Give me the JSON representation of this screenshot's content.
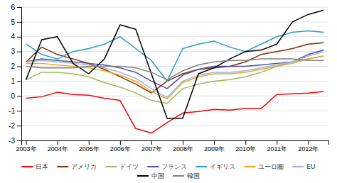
{
  "chart_data": {
    "type": "line",
    "categories": [
      "2003年",
      null,
      "2004年",
      null,
      "2005年",
      null,
      "2006年",
      null,
      "2007年",
      null,
      "2008年",
      null,
      "2009年",
      null,
      "2010年",
      null,
      "2011年",
      null,
      "2012年",
      null
    ],
    "series": [
      {
        "name": "日本",
        "color": "#ff0000",
        "values": [
          -0.15,
          -0.05,
          0.25,
          0.1,
          0.05,
          -0.15,
          -0.3,
          -2.2,
          -2.5,
          -1.8,
          -1.15,
          -1.05,
          -0.9,
          -0.95,
          -0.85,
          -0.85,
          0.1,
          0.15,
          0.2,
          0.3
        ]
      },
      {
        "name": "アメリカ",
        "color": "#7f2f00",
        "values": [
          2.3,
          3.3,
          2.8,
          2.5,
          2.2,
          1.8,
          1.3,
          0.8,
          0.2,
          1.0,
          1.5,
          1.8,
          1.9,
          2.0,
          2.3,
          2.8,
          3.0,
          3.2,
          3.5,
          3.6
        ]
      },
      {
        "name": "ドイツ",
        "color": "#9fba59",
        "values": [
          1.1,
          1.6,
          1.6,
          1.5,
          1.3,
          0.9,
          0.6,
          0.2,
          -0.3,
          -0.5,
          0.5,
          0.8,
          1.0,
          1.1,
          1.3,
          1.6,
          2.0,
          2.3,
          2.5,
          2.7
        ]
      },
      {
        "name": "フランス",
        "color": "#4f4fa0",
        "values": [
          2.3,
          2.5,
          2.4,
          2.3,
          2.2,
          2.1,
          1.9,
          1.6,
          1.0,
          0.5,
          1.4,
          1.8,
          2.0,
          2.0,
          2.0,
          2.1,
          2.2,
          2.3,
          2.8,
          3.1
        ]
      },
      {
        "name": "イギリス",
        "color": "#23a0c8",
        "values": [
          3.5,
          2.8,
          2.5,
          3.0,
          3.2,
          3.5,
          4.0,
          3.2,
          2.4,
          1.0,
          3.2,
          3.5,
          3.7,
          3.3,
          3.0,
          3.5,
          4.0,
          4.3,
          4.4,
          4.3
        ]
      },
      {
        "name": "ユーロ圏",
        "color": "#f4a429",
        "values": [
          2.2,
          2.2,
          2.1,
          2.0,
          1.9,
          1.7,
          1.4,
          1.0,
          0.3,
          -0.2,
          0.9,
          1.3,
          1.5,
          1.5,
          1.6,
          1.8,
          2.0,
          2.2,
          2.5,
          2.7
        ]
      },
      {
        "name": "EU",
        "color": "#9ab7d9",
        "values": [
          2.3,
          2.4,
          2.3,
          2.2,
          2.1,
          1.9,
          1.6,
          1.2,
          0.5,
          -0.1,
          1.0,
          1.4,
          1.6,
          1.6,
          1.7,
          1.9,
          2.1,
          2.3,
          2.7,
          3.0
        ]
      },
      {
        "name": "中国",
        "color": "#000000",
        "values": [
          1.1,
          3.8,
          4.0,
          2.2,
          1.5,
          2.5,
          4.8,
          4.5,
          1.5,
          -1.5,
          -1.5,
          1.5,
          1.9,
          2.5,
          3.0,
          3.1,
          3.5,
          5.0,
          5.5,
          5.8
        ]
      },
      {
        "name": "韓国",
        "color": "#808080",
        "values": [
          2.0,
          1.9,
          1.9,
          1.9,
          2.0,
          2.0,
          2.0,
          1.9,
          1.6,
          1.1,
          1.7,
          2.1,
          2.3,
          2.4,
          2.4,
          2.5,
          2.5,
          2.5,
          2.4,
          2.4
        ]
      }
    ],
    "ylim": [
      -3,
      6
    ],
    "yticks": [
      -3,
      -2,
      -1,
      0,
      1,
      2,
      3,
      4,
      5,
      6
    ],
    "grid": true,
    "legend": "bottom"
  }
}
